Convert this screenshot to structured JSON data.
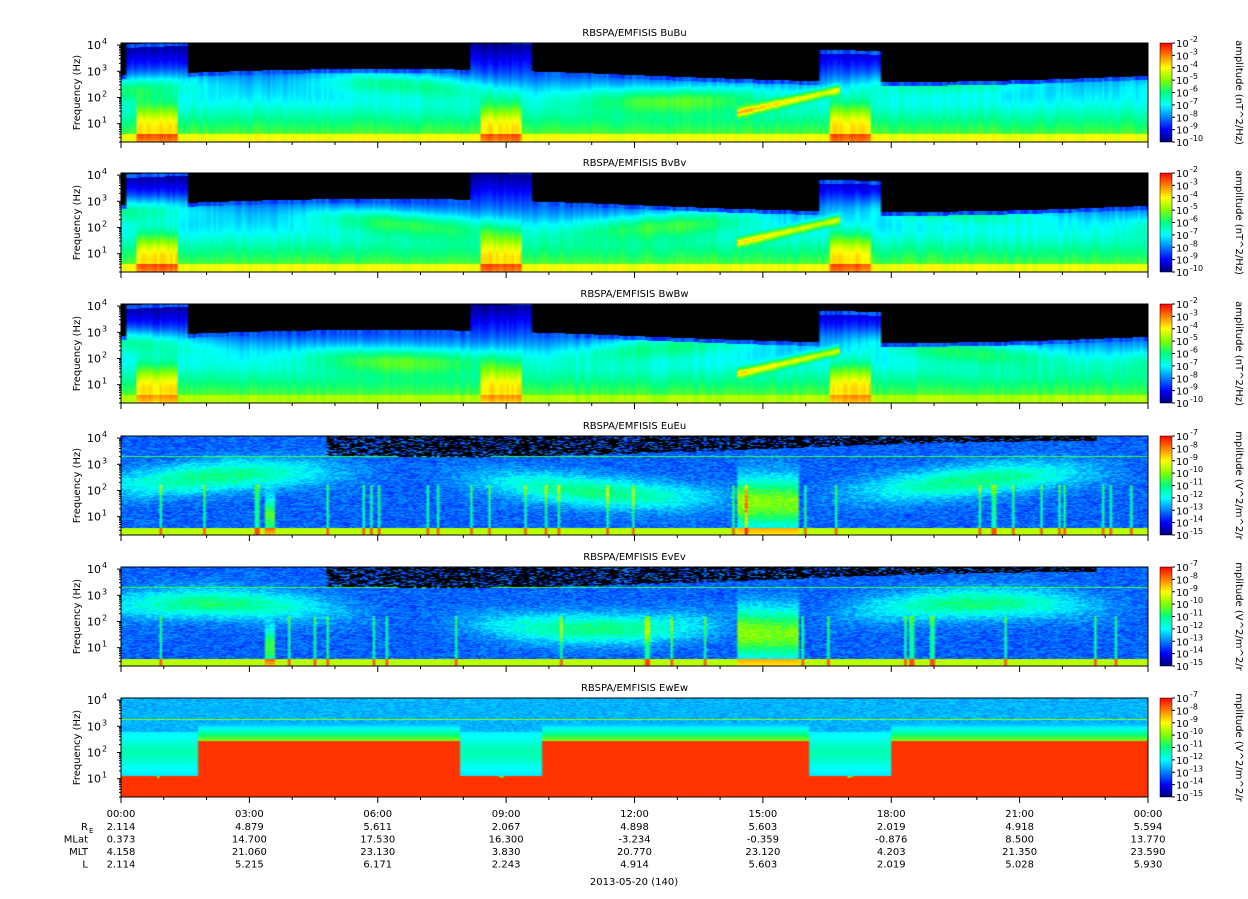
{
  "chart_data": {
    "type": "heatmap",
    "figure_title": "",
    "date_label": "2013-05-20 (140)",
    "x_axis": {
      "ticks": [
        "00:00",
        "03:00",
        "06:00",
        "09:00",
        "12:00",
        "15:00",
        "18:00",
        "21:00",
        "00:00"
      ],
      "minor_ticks_per_major": 3
    },
    "ephemeris": [
      {
        "label": "R",
        "sub": "E",
        "values": [
          "2.114",
          "4.879",
          "5.611",
          "2.067",
          "4.898",
          "5.603",
          "2.019",
          "4.918",
          "5.594"
        ]
      },
      {
        "label": "MLat",
        "sub": "",
        "values": [
          "0.373",
          "14.700",
          "17.530",
          "16.300",
          "-3.234",
          "-0.359",
          "-0.876",
          "8.500",
          "13.770"
        ]
      },
      {
        "label": "MLT",
        "sub": "",
        "values": [
          "4.158",
          "21.060",
          "23.130",
          "3.830",
          "20.770",
          "23.120",
          "4.203",
          "21.350",
          "23.590"
        ]
      },
      {
        "label": "L",
        "sub": "",
        "values": [
          "2.114",
          "5.215",
          "6.171",
          "2.243",
          "4.914",
          "5.603",
          "2.019",
          "5.028",
          "5.930"
        ]
      }
    ],
    "panels": [
      {
        "title": "RBSPA/EMFISIS  BuBu",
        "ylabel": "Frequency (Hz)",
        "yticks": [
          "10",
          "10",
          "10",
          "10"
        ],
        "yexp": [
          "1",
          "2",
          "3",
          "4"
        ],
        "cbar_label": "amplitude (nT^2/Hz)",
        "cbar_ticks": [
          "10",
          "10",
          "10",
          "10",
          "10",
          "10",
          "10",
          "10",
          "10"
        ],
        "cbar_exp": [
          "-2",
          "-3",
          "-4",
          "-5",
          "-6",
          "-7",
          "-8",
          "-9",
          "-10"
        ],
        "kind": "B",
        "variant": 0
      },
      {
        "title": "RBSPA/EMFISIS  BvBv",
        "ylabel": "Frequency (Hz)",
        "yticks": [
          "10",
          "10",
          "10",
          "10"
        ],
        "yexp": [
          "1",
          "2",
          "3",
          "4"
        ],
        "cbar_label": "amplitude (nT^2/Hz)",
        "cbar_ticks": [
          "10",
          "10",
          "10",
          "10",
          "10",
          "10",
          "10",
          "10",
          "10"
        ],
        "cbar_exp": [
          "-2",
          "-3",
          "-4",
          "-5",
          "-6",
          "-7",
          "-8",
          "-9",
          "-10"
        ],
        "kind": "B",
        "variant": 1
      },
      {
        "title": "RBSPA/EMFISIS  BwBw",
        "ylabel": "Frequency (Hz)",
        "yticks": [
          "10",
          "10",
          "10",
          "10"
        ],
        "yexp": [
          "1",
          "2",
          "3",
          "4"
        ],
        "cbar_label": "amplitude (nT^2/Hz)",
        "cbar_ticks": [
          "10",
          "10",
          "10",
          "10",
          "10",
          "10",
          "10",
          "10",
          "10"
        ],
        "cbar_exp": [
          "-2",
          "-3",
          "-4",
          "-5",
          "-6",
          "-7",
          "-8",
          "-9",
          "-10"
        ],
        "kind": "B",
        "variant": 2
      },
      {
        "title": "RBSPA/EMFISIS  EuEu",
        "ylabel": "Frequency (Hz)",
        "yticks": [
          "10",
          "10",
          "10",
          "10"
        ],
        "yexp": [
          "1",
          "2",
          "3",
          "4"
        ],
        "cbar_label": "mplitude (V^2/m^2/r",
        "cbar_ticks": [
          "10",
          "10",
          "10",
          "10",
          "10",
          "10",
          "10",
          "10",
          "10"
        ],
        "cbar_exp": [
          "-7",
          "-8",
          "-9",
          "-10",
          "-11",
          "-12",
          "-13",
          "-14",
          "-15"
        ],
        "kind": "E",
        "variant": 0
      },
      {
        "title": "RBSPA/EMFISIS  EvEv",
        "ylabel": "Frequency (Hz)",
        "yticks": [
          "10",
          "10",
          "10",
          "10"
        ],
        "yexp": [
          "1",
          "2",
          "3",
          "4"
        ],
        "cbar_label": "mplitude (V^2/m^2/r",
        "cbar_ticks": [
          "10",
          "10",
          "10",
          "10",
          "10",
          "10",
          "10",
          "10",
          "10"
        ],
        "cbar_exp": [
          "-7",
          "-8",
          "-9",
          "-10",
          "-11",
          "-12",
          "-13",
          "-14",
          "-15"
        ],
        "kind": "E",
        "variant": 1
      },
      {
        "title": "RBSPA/EMFISIS  EwEw",
        "ylabel": "Frequency (Hz)",
        "yticks": [
          "10",
          "10",
          "10",
          "10"
        ],
        "yexp": [
          "1",
          "2",
          "3",
          "4"
        ],
        "cbar_label": "mplitude (V^2/m^2/r",
        "cbar_ticks": [
          "10",
          "10",
          "10",
          "10",
          "10",
          "10",
          "10",
          "10",
          "10"
        ],
        "cbar_exp": [
          "-7",
          "-8",
          "-9",
          "-10",
          "-11",
          "-12",
          "-13",
          "-14",
          "-15"
        ],
        "kind": "EW",
        "variant": 0
      }
    ],
    "colors": {
      "colormap": [
        "#00007a",
        "#0000ff",
        "#0080ff",
        "#00ffff",
        "#00ff80",
        "#80ff00",
        "#ffff00",
        "#ff8000",
        "#ff0000"
      ],
      "background": "#ffffff",
      "no_data": "#000000"
    }
  }
}
